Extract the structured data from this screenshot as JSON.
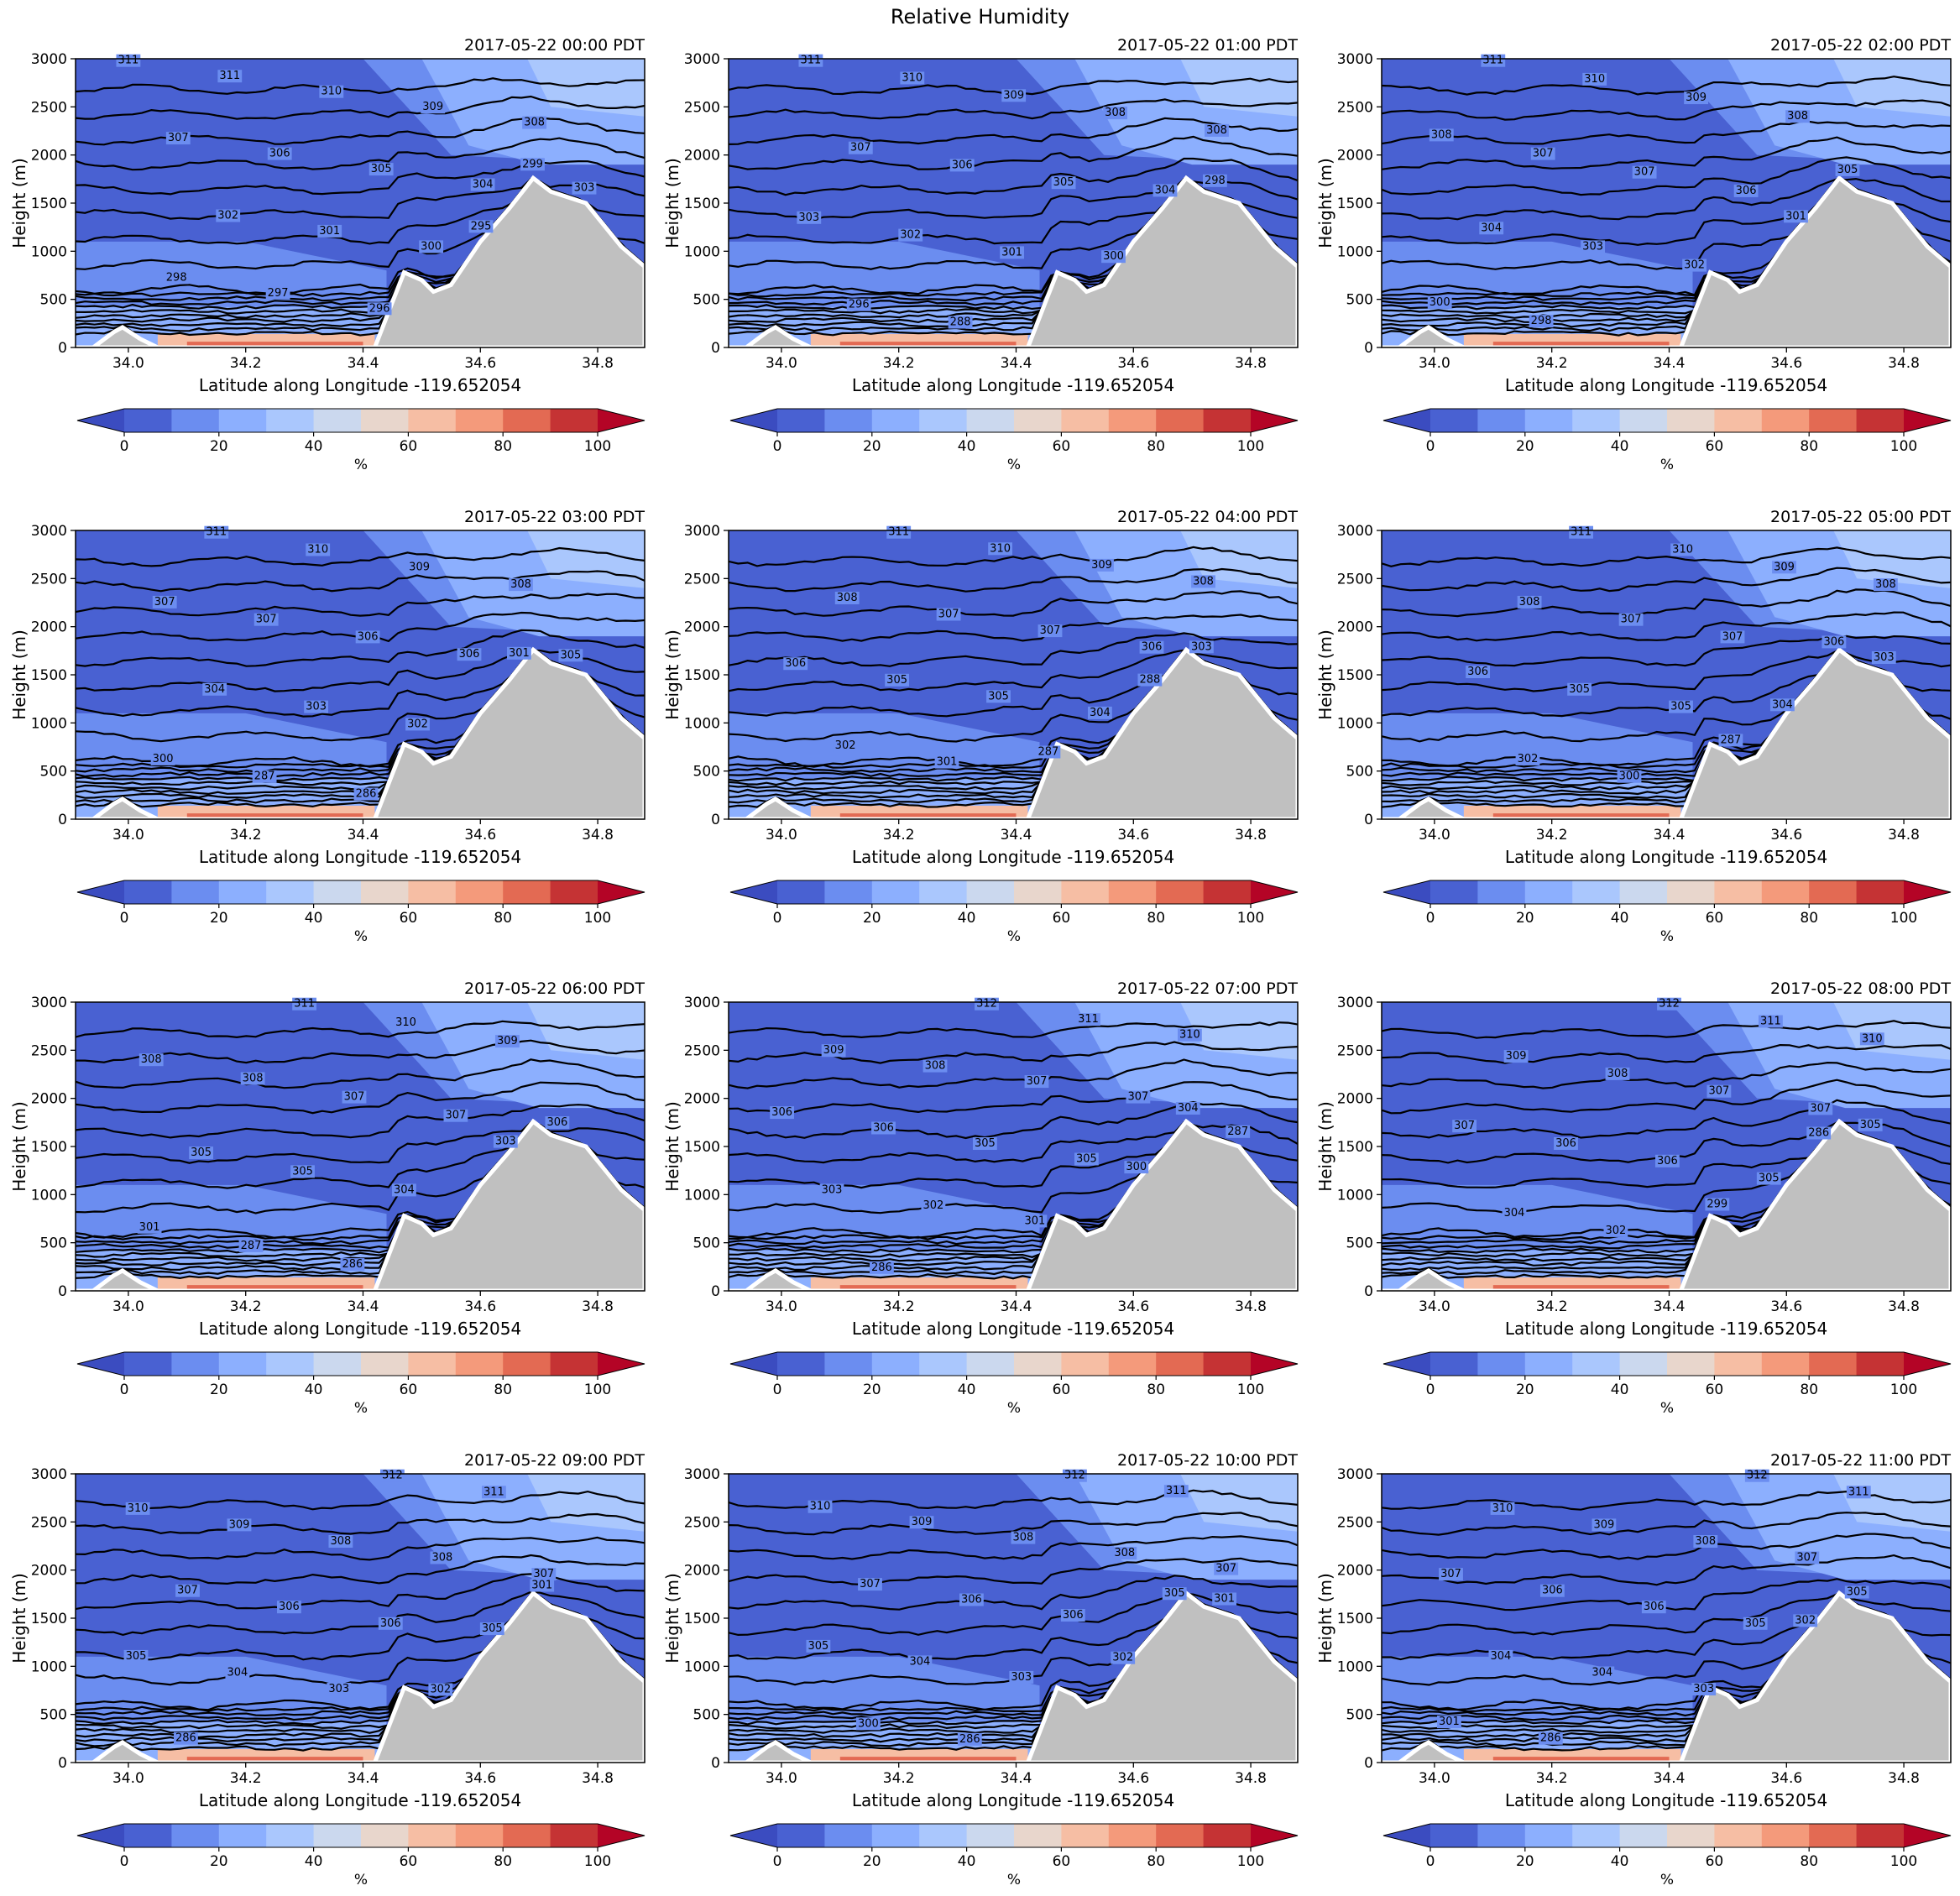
{
  "figure_title": "Relative Humidity",
  "colors": {
    "levels": [
      "#3b4cc0",
      "#4961d2",
      "#6b8df0",
      "#8caffe",
      "#aac7fd",
      "#cbd8ee",
      "#e8d6cc",
      "#f6bea4",
      "#f49a7b",
      "#e36a53",
      "#c53334",
      "#b40426"
    ],
    "terrain": "#c0c0c0",
    "contour": "#000000"
  },
  "chart_data": [
    {
      "type": "contour",
      "title": "2017-05-22 00:00 PDT",
      "xlabel": "Latitude along Longitude -119.652054",
      "ylabel": "Height (m)",
      "xlim": [
        33.91,
        34.88
      ],
      "ylim": [
        0,
        3000
      ],
      "xticks": [
        "34.0",
        "34.2",
        "34.4",
        "34.6",
        "34.8"
      ],
      "yticks": [
        "0",
        "500",
        "1000",
        "1500",
        "2000",
        "2500",
        "3000"
      ],
      "colorbar": {
        "label": "%",
        "ticks": [
          "0",
          "20",
          "40",
          "60",
          "80",
          "100"
        ],
        "extend": "both"
      },
      "contour_labels": [
        "311",
        "311",
        "310",
        "309",
        "308",
        "307",
        "306",
        "305",
        "304",
        "303",
        "302",
        "301",
        "300",
        "299",
        "298",
        "297",
        "296",
        "295"
      ]
    },
    {
      "type": "contour",
      "title": "2017-05-22 01:00 PDT",
      "xlabel": "Latitude along Longitude -119.652054",
      "ylabel": "Height (m)",
      "xlim": [
        33.91,
        34.88
      ],
      "ylim": [
        0,
        3000
      ],
      "xticks": [
        "34.0",
        "34.2",
        "34.4",
        "34.6",
        "34.8"
      ],
      "yticks": [
        "0",
        "500",
        "1000",
        "1500",
        "2000",
        "2500",
        "3000"
      ],
      "colorbar": {
        "label": "%",
        "ticks": [
          "0",
          "20",
          "40",
          "60",
          "80",
          "100"
        ],
        "extend": "both"
      },
      "contour_labels": [
        "311",
        "310",
        "309",
        "308",
        "308",
        "307",
        "306",
        "305",
        "304",
        "303",
        "302",
        "301",
        "300",
        "298",
        "296",
        "288"
      ]
    },
    {
      "type": "contour",
      "title": "2017-05-22 02:00 PDT",
      "xlabel": "Latitude along Longitude -119.652054",
      "ylabel": "Height (m)",
      "xlim": [
        33.91,
        34.88
      ],
      "ylim": [
        0,
        3000
      ],
      "xticks": [
        "34.0",
        "34.2",
        "34.4",
        "34.6",
        "34.8"
      ],
      "yticks": [
        "0",
        "500",
        "1000",
        "1500",
        "2000",
        "2500",
        "3000"
      ],
      "colorbar": {
        "label": "%",
        "ticks": [
          "0",
          "20",
          "40",
          "60",
          "80",
          "100"
        ],
        "extend": "both"
      },
      "contour_labels": [
        "311",
        "310",
        "309",
        "308",
        "308",
        "307",
        "307",
        "306",
        "305",
        "304",
        "303",
        "302",
        "301",
        "300",
        "298"
      ]
    },
    {
      "type": "contour",
      "title": "2017-05-22 03:00 PDT",
      "xlabel": "Latitude along Longitude -119.652054",
      "ylabel": "Height (m)",
      "xlim": [
        33.91,
        34.88
      ],
      "ylim": [
        0,
        3000
      ],
      "xticks": [
        "34.0",
        "34.2",
        "34.4",
        "34.6",
        "34.8"
      ],
      "yticks": [
        "0",
        "500",
        "1000",
        "1500",
        "2000",
        "2500",
        "3000"
      ],
      "colorbar": {
        "label": "%",
        "ticks": [
          "0",
          "20",
          "40",
          "60",
          "80",
          "100"
        ],
        "extend": "both"
      },
      "contour_labels": [
        "311",
        "310",
        "309",
        "308",
        "307",
        "307",
        "306",
        "306",
        "305",
        "304",
        "303",
        "302",
        "301",
        "300",
        "287",
        "286"
      ]
    },
    {
      "type": "contour",
      "title": "2017-05-22 04:00 PDT",
      "xlabel": "Latitude along Longitude -119.652054",
      "ylabel": "Height (m)",
      "xlim": [
        33.91,
        34.88
      ],
      "ylim": [
        0,
        3000
      ],
      "xticks": [
        "34.0",
        "34.2",
        "34.4",
        "34.6",
        "34.8"
      ],
      "yticks": [
        "0",
        "500",
        "1000",
        "1500",
        "2000",
        "2500",
        "3000"
      ],
      "colorbar": {
        "label": "%",
        "ticks": [
          "0",
          "20",
          "40",
          "60",
          "80",
          "100"
        ],
        "extend": "both"
      },
      "contour_labels": [
        "311",
        "310",
        "309",
        "308",
        "308",
        "307",
        "307",
        "306",
        "306",
        "305",
        "305",
        "304",
        "303",
        "302",
        "301",
        "287",
        "288"
      ]
    },
    {
      "type": "contour",
      "title": "2017-05-22 05:00 PDT",
      "xlabel": "Latitude along Longitude -119.652054",
      "ylabel": "Height (m)",
      "xlim": [
        33.91,
        34.88
      ],
      "ylim": [
        0,
        3000
      ],
      "xticks": [
        "34.0",
        "34.2",
        "34.4",
        "34.6",
        "34.8"
      ],
      "yticks": [
        "0",
        "500",
        "1000",
        "1500",
        "2000",
        "2500",
        "3000"
      ],
      "colorbar": {
        "label": "%",
        "ticks": [
          "0",
          "20",
          "40",
          "60",
          "80",
          "100"
        ],
        "extend": "both"
      },
      "contour_labels": [
        "311",
        "310",
        "309",
        "308",
        "308",
        "307",
        "307",
        "306",
        "306",
        "305",
        "305",
        "304",
        "303",
        "302",
        "300",
        "287"
      ]
    },
    {
      "type": "contour",
      "title": "2017-05-22 06:00 PDT",
      "xlabel": "Latitude along Longitude -119.652054",
      "ylabel": "Height (m)",
      "xlim": [
        33.91,
        34.88
      ],
      "ylim": [
        0,
        3000
      ],
      "xticks": [
        "34.0",
        "34.2",
        "34.4",
        "34.6",
        "34.8"
      ],
      "yticks": [
        "0",
        "500",
        "1000",
        "1500",
        "2000",
        "2500",
        "3000"
      ],
      "colorbar": {
        "label": "%",
        "ticks": [
          "0",
          "20",
          "40",
          "60",
          "80",
          "100"
        ],
        "extend": "both"
      },
      "contour_labels": [
        "311",
        "310",
        "309",
        "308",
        "308",
        "307",
        "307",
        "306",
        "305",
        "305",
        "304",
        "303",
        "301",
        "287",
        "286"
      ]
    },
    {
      "type": "contour",
      "title": "2017-05-22 07:00 PDT",
      "xlabel": "Latitude along Longitude -119.652054",
      "ylabel": "Height (m)",
      "xlim": [
        33.91,
        34.88
      ],
      "ylim": [
        0,
        3000
      ],
      "xticks": [
        "34.0",
        "34.2",
        "34.4",
        "34.6",
        "34.8"
      ],
      "yticks": [
        "0",
        "500",
        "1000",
        "1500",
        "2000",
        "2500",
        "3000"
      ],
      "colorbar": {
        "label": "%",
        "ticks": [
          "0",
          "20",
          "40",
          "60",
          "80",
          "100"
        ],
        "extend": "both"
      },
      "contour_labels": [
        "312",
        "311",
        "310",
        "309",
        "308",
        "307",
        "307",
        "306",
        "306",
        "305",
        "305",
        "304",
        "303",
        "302",
        "301",
        "300",
        "287",
        "286"
      ]
    },
    {
      "type": "contour",
      "title": "2017-05-22 08:00 PDT",
      "xlabel": "Latitude along Longitude -119.652054",
      "ylabel": "Height (m)",
      "xlim": [
        33.91,
        34.88
      ],
      "ylim": [
        0,
        3000
      ],
      "xticks": [
        "34.0",
        "34.2",
        "34.4",
        "34.6",
        "34.8"
      ],
      "yticks": [
        "0",
        "500",
        "1000",
        "1500",
        "2000",
        "2500",
        "3000"
      ],
      "colorbar": {
        "label": "%",
        "ticks": [
          "0",
          "20",
          "40",
          "60",
          "80",
          "100"
        ],
        "extend": "both"
      },
      "contour_labels": [
        "312",
        "311",
        "310",
        "309",
        "308",
        "307",
        "307",
        "307",
        "306",
        "306",
        "305",
        "305",
        "304",
        "302",
        "299",
        "286"
      ]
    },
    {
      "type": "contour",
      "title": "2017-05-22 09:00 PDT",
      "xlabel": "Latitude along Longitude -119.652054",
      "ylabel": "Height (m)",
      "xlim": [
        33.91,
        34.88
      ],
      "ylim": [
        0,
        3000
      ],
      "xticks": [
        "34.0",
        "34.2",
        "34.4",
        "34.6",
        "34.8"
      ],
      "yticks": [
        "0",
        "500",
        "1000",
        "1500",
        "2000",
        "2500",
        "3000"
      ],
      "colorbar": {
        "label": "%",
        "ticks": [
          "0",
          "20",
          "40",
          "60",
          "80",
          "100"
        ],
        "extend": "both"
      },
      "contour_labels": [
        "312",
        "311",
        "310",
        "309",
        "308",
        "308",
        "307",
        "307",
        "306",
        "306",
        "305",
        "305",
        "304",
        "303",
        "302",
        "301",
        "286"
      ]
    },
    {
      "type": "contour",
      "title": "2017-05-22 10:00 PDT",
      "xlabel": "Latitude along Longitude -119.652054",
      "ylabel": "Height (m)",
      "xlim": [
        33.91,
        34.88
      ],
      "ylim": [
        0,
        3000
      ],
      "xticks": [
        "34.0",
        "34.2",
        "34.4",
        "34.6",
        "34.8"
      ],
      "yticks": [
        "0",
        "500",
        "1000",
        "1500",
        "2000",
        "2500",
        "3000"
      ],
      "colorbar": {
        "label": "%",
        "ticks": [
          "0",
          "20",
          "40",
          "60",
          "80",
          "100"
        ],
        "extend": "both"
      },
      "contour_labels": [
        "312",
        "311",
        "310",
        "309",
        "308",
        "308",
        "307",
        "307",
        "306",
        "306",
        "305",
        "305",
        "304",
        "303",
        "302",
        "301",
        "300",
        "286"
      ]
    },
    {
      "type": "contour",
      "title": "2017-05-22 11:00 PDT",
      "xlabel": "Latitude along Longitude -119.652054",
      "ylabel": "Height (m)",
      "xlim": [
        33.91,
        34.88
      ],
      "ylim": [
        0,
        3000
      ],
      "xticks": [
        "34.0",
        "34.2",
        "34.4",
        "34.6",
        "34.8"
      ],
      "yticks": [
        "0",
        "500",
        "1000",
        "1500",
        "2000",
        "2500",
        "3000"
      ],
      "colorbar": {
        "label": "%",
        "ticks": [
          "0",
          "20",
          "40",
          "60",
          "80",
          "100"
        ],
        "extend": "both"
      },
      "contour_labels": [
        "312",
        "311",
        "310",
        "309",
        "308",
        "307",
        "307",
        "306",
        "306",
        "305",
        "305",
        "304",
        "304",
        "303",
        "302",
        "301",
        "286"
      ]
    }
  ]
}
